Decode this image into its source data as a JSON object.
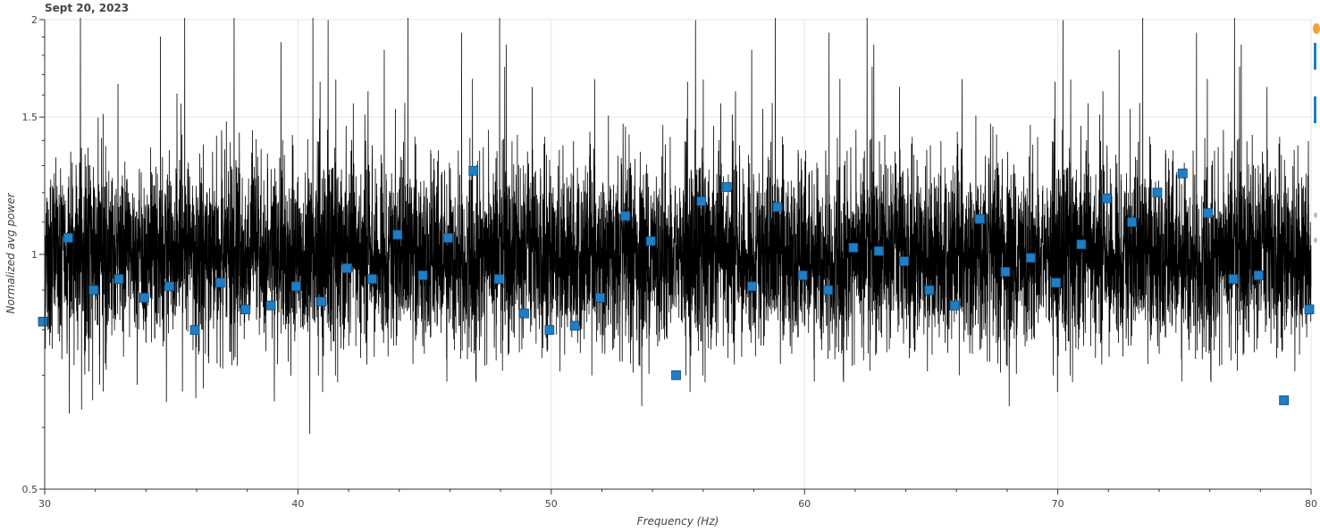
{
  "chart_data": {
    "type": "line",
    "title": "Sept 20, 2023",
    "xlabel": "Frequency (Hz)",
    "ylabel": "Normalized avg power",
    "xlim": [
      30,
      80
    ],
    "ylim": [
      0.5,
      2
    ],
    "yscale": "log",
    "grid": true,
    "x_ticks": [
      30,
      40,
      50,
      60,
      70,
      80
    ],
    "y_ticks": [
      0.5,
      1,
      1.5,
      2
    ],
    "y_tick_labels": [
      "0.5",
      "1",
      "1.5",
      "2"
    ],
    "series": [
      {
        "kind": "noise-line",
        "color": "#000000",
        "baseline": 1.0,
        "typical_range": [
          0.72,
          1.34
        ],
        "extreme_range": [
          0.5,
          2.0
        ]
      },
      {
        "kind": "markers",
        "color": "#1f7ec4",
        "marker": "square",
        "x": [
          30,
          31,
          32,
          33,
          34,
          35,
          36,
          37,
          38,
          39,
          40,
          41,
          42,
          43,
          44,
          45,
          46,
          47,
          48,
          49,
          50,
          51,
          52,
          53,
          54,
          55,
          56,
          57,
          58,
          59,
          60,
          61,
          62,
          63,
          64,
          65,
          66,
          67,
          68,
          69,
          70,
          71,
          72,
          73,
          74,
          75,
          76,
          77,
          78,
          79,
          80
        ],
        "y": [
          0.82,
          1.05,
          0.9,
          0.93,
          0.88,
          0.91,
          0.8,
          0.92,
          0.85,
          0.86,
          0.91,
          0.87,
          0.96,
          0.93,
          1.06,
          0.94,
          1.05,
          1.28,
          0.93,
          0.84,
          0.8,
          0.81,
          0.88,
          1.12,
          1.04,
          0.7,
          1.17,
          1.22,
          0.91,
          1.15,
          0.94,
          0.9,
          1.02,
          1.01,
          0.98,
          0.9,
          0.86,
          1.11,
          0.95,
          0.99,
          0.92,
          1.03,
          1.18,
          1.1,
          1.2,
          1.27,
          1.13,
          0.93,
          0.94,
          0.65,
          0.85
        ]
      }
    ]
  }
}
